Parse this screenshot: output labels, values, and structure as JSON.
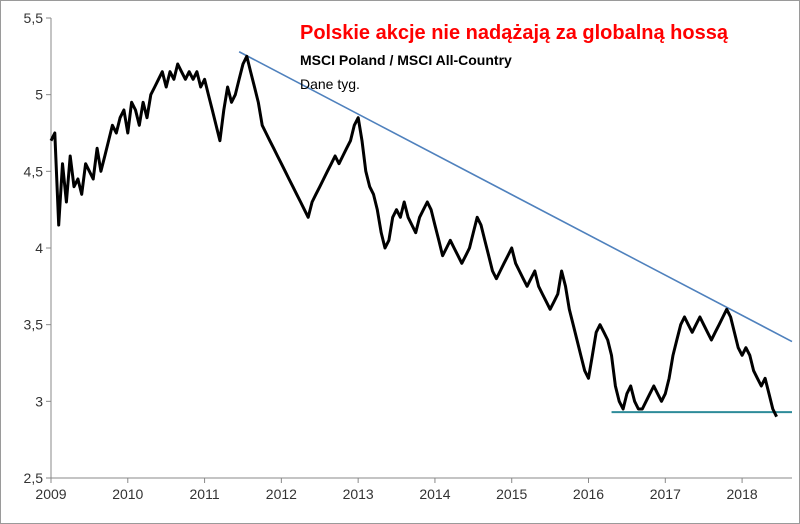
{
  "chart_data": {
    "type": "line",
    "title": "Polskie akcje nie nadążają za globalną hossą",
    "subtitle": "MSCI Poland  / MSCI All-Country",
    "note": "Dane tyg.",
    "x_ticks": [
      "2009",
      "2010",
      "2011",
      "2012",
      "2013",
      "2014",
      "2015",
      "2016",
      "2017",
      "2018"
    ],
    "y_ticks": [
      "2,5",
      "3",
      "3,5",
      "4",
      "4,5",
      "5",
      "5,5"
    ],
    "xlim": [
      2009,
      2018.65
    ],
    "ylim": [
      2.5,
      5.5
    ],
    "grid": false,
    "series": [
      {
        "color": "#000000",
        "x": [
          2009.0,
          2009.05,
          2009.1,
          2009.15,
          2009.2,
          2009.25,
          2009.3,
          2009.35,
          2009.4,
          2009.45,
          2009.5,
          2009.55,
          2009.6,
          2009.65,
          2009.7,
          2009.75,
          2009.8,
          2009.85,
          2009.9,
          2009.95,
          2010.0,
          2010.05,
          2010.1,
          2010.15,
          2010.2,
          2010.25,
          2010.3,
          2010.35,
          2010.4,
          2010.45,
          2010.5,
          2010.55,
          2010.6,
          2010.65,
          2010.7,
          2010.75,
          2010.8,
          2010.85,
          2010.9,
          2010.95,
          2011.0,
          2011.05,
          2011.1,
          2011.15,
          2011.2,
          2011.25,
          2011.3,
          2011.35,
          2011.4,
          2011.45,
          2011.5,
          2011.55,
          2011.6,
          2011.65,
          2011.7,
          2011.75,
          2011.8,
          2011.85,
          2011.9,
          2011.95,
          2012.0,
          2012.05,
          2012.1,
          2012.15,
          2012.2,
          2012.25,
          2012.3,
          2012.35,
          2012.4,
          2012.45,
          2012.5,
          2012.55,
          2012.6,
          2012.65,
          2012.7,
          2012.75,
          2012.8,
          2012.85,
          2012.9,
          2012.95,
          2013.0,
          2013.05,
          2013.1,
          2013.15,
          2013.2,
          2013.25,
          2013.3,
          2013.35,
          2013.4,
          2013.45,
          2013.5,
          2013.55,
          2013.6,
          2013.65,
          2013.7,
          2013.75,
          2013.8,
          2013.85,
          2013.9,
          2013.95,
          2014.0,
          2014.05,
          2014.1,
          2014.15,
          2014.2,
          2014.25,
          2014.3,
          2014.35,
          2014.4,
          2014.45,
          2014.5,
          2014.55,
          2014.6,
          2014.65,
          2014.7,
          2014.75,
          2014.8,
          2014.85,
          2014.9,
          2014.95,
          2015.0,
          2015.05,
          2015.1,
          2015.15,
          2015.2,
          2015.25,
          2015.3,
          2015.35,
          2015.4,
          2015.45,
          2015.5,
          2015.55,
          2015.6,
          2015.65,
          2015.7,
          2015.75,
          2015.8,
          2015.85,
          2015.9,
          2015.95,
          2016.0,
          2016.05,
          2016.1,
          2016.15,
          2016.2,
          2016.25,
          2016.3,
          2016.35,
          2016.4,
          2016.45,
          2016.5,
          2016.55,
          2016.6,
          2016.65,
          2016.7,
          2016.75,
          2016.8,
          2016.85,
          2016.9,
          2016.95,
          2017.0,
          2017.05,
          2017.1,
          2017.15,
          2017.2,
          2017.25,
          2017.3,
          2017.35,
          2017.4,
          2017.45,
          2017.5,
          2017.55,
          2017.6,
          2017.65,
          2017.7,
          2017.75,
          2017.8,
          2017.85,
          2017.9,
          2017.95,
          2018.0,
          2018.05,
          2018.1,
          2018.15,
          2018.2,
          2018.25,
          2018.3,
          2018.35,
          2018.4,
          2018.45
        ],
        "y": [
          4.7,
          4.75,
          4.15,
          4.55,
          4.3,
          4.6,
          4.4,
          4.45,
          4.35,
          4.55,
          4.5,
          4.45,
          4.65,
          4.5,
          4.6,
          4.7,
          4.8,
          4.75,
          4.85,
          4.9,
          4.75,
          4.95,
          4.9,
          4.8,
          4.95,
          4.85,
          5.0,
          5.05,
          5.1,
          5.15,
          5.05,
          5.15,
          5.1,
          5.2,
          5.15,
          5.1,
          5.15,
          5.1,
          5.15,
          5.05,
          5.1,
          5.0,
          4.9,
          4.8,
          4.7,
          4.9,
          5.05,
          4.95,
          5.0,
          5.1,
          5.2,
          5.25,
          5.15,
          5.05,
          4.95,
          4.8,
          4.75,
          4.7,
          4.65,
          4.6,
          4.55,
          4.5,
          4.45,
          4.4,
          4.35,
          4.3,
          4.25,
          4.2,
          4.3,
          4.35,
          4.4,
          4.45,
          4.5,
          4.55,
          4.6,
          4.55,
          4.6,
          4.65,
          4.7,
          4.8,
          4.85,
          4.7,
          4.5,
          4.4,
          4.35,
          4.25,
          4.1,
          4.0,
          4.05,
          4.2,
          4.25,
          4.2,
          4.3,
          4.2,
          4.15,
          4.1,
          4.2,
          4.25,
          4.3,
          4.25,
          4.15,
          4.05,
          3.95,
          4.0,
          4.05,
          4.0,
          3.95,
          3.9,
          3.95,
          4.0,
          4.1,
          4.2,
          4.15,
          4.05,
          3.95,
          3.85,
          3.8,
          3.85,
          3.9,
          3.95,
          4.0,
          3.9,
          3.85,
          3.8,
          3.75,
          3.8,
          3.85,
          3.75,
          3.7,
          3.65,
          3.6,
          3.65,
          3.7,
          3.85,
          3.75,
          3.6,
          3.5,
          3.4,
          3.3,
          3.2,
          3.15,
          3.3,
          3.45,
          3.5,
          3.45,
          3.4,
          3.3,
          3.1,
          3.0,
          2.95,
          3.05,
          3.1,
          3.0,
          2.95,
          2.95,
          3.0,
          3.05,
          3.1,
          3.05,
          3.0,
          3.05,
          3.15,
          3.3,
          3.4,
          3.5,
          3.55,
          3.5,
          3.45,
          3.5,
          3.55,
          3.5,
          3.45,
          3.4,
          3.45,
          3.5,
          3.55,
          3.6,
          3.55,
          3.45,
          3.35,
          3.3,
          3.35,
          3.3,
          3.2,
          3.15,
          3.1,
          3.15,
          3.05,
          2.95,
          2.9
        ]
      }
    ],
    "trend_lines": [
      {
        "color": "#4f81bd",
        "x": [
          2011.45,
          2018.65
        ],
        "y": [
          5.28,
          3.39
        ]
      },
      {
        "color": "#2e8b99",
        "x": [
          2016.3,
          2018.65
        ],
        "y": [
          2.93,
          2.93
        ]
      }
    ]
  }
}
